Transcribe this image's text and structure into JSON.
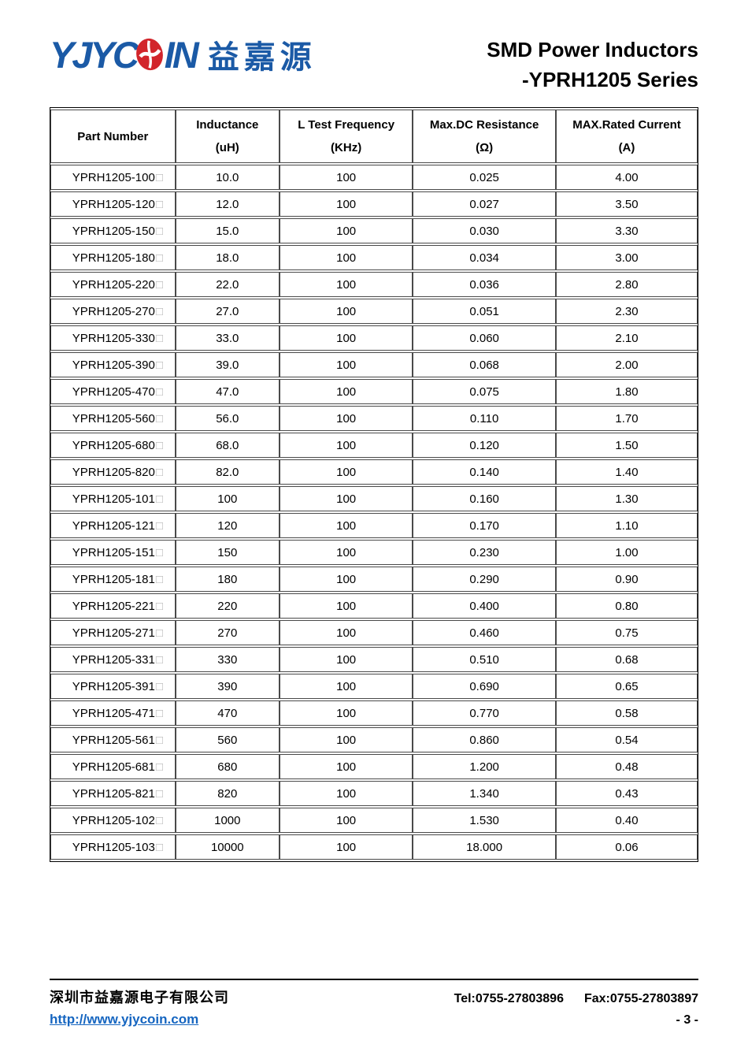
{
  "logo": {
    "latin_left": "YJYC",
    "latin_right": "IN",
    "coin_icon": "coin-o-icon",
    "chinese": "益嘉源",
    "blue": "#1b5aa6",
    "red": "#d2252b"
  },
  "header": {
    "title_line1": "SMD Power Inductors",
    "title_line2": "-YPRH1205 Series"
  },
  "table": {
    "suffix_symbol": "□",
    "columns": [
      {
        "label": "Part Number",
        "unit": ""
      },
      {
        "label": "Inductance",
        "unit": "(uH)"
      },
      {
        "label": "L Test Frequency",
        "unit": "(KHz)"
      },
      {
        "label": "Max.DC Resistance",
        "unit": "(Ω)"
      },
      {
        "label": "MAX.Rated Current",
        "unit": "(A)"
      }
    ],
    "rows": [
      [
        "YPRH1205-100",
        "10.0",
        "100",
        "0.025",
        "4.00"
      ],
      [
        "YPRH1205-120",
        "12.0",
        "100",
        "0.027",
        "3.50"
      ],
      [
        "YPRH1205-150",
        "15.0",
        "100",
        "0.030",
        "3.30"
      ],
      [
        "YPRH1205-180",
        "18.0",
        "100",
        "0.034",
        "3.00"
      ],
      [
        "YPRH1205-220",
        "22.0",
        "100",
        "0.036",
        "2.80"
      ],
      [
        "YPRH1205-270",
        "27.0",
        "100",
        "0.051",
        "2.30"
      ],
      [
        "YPRH1205-330",
        "33.0",
        "100",
        "0.060",
        "2.10"
      ],
      [
        "YPRH1205-390",
        "39.0",
        "100",
        "0.068",
        "2.00"
      ],
      [
        "YPRH1205-470",
        "47.0",
        "100",
        "0.075",
        "1.80"
      ],
      [
        "YPRH1205-560",
        "56.0",
        "100",
        "0.110",
        "1.70"
      ],
      [
        "YPRH1205-680",
        "68.0",
        "100",
        "0.120",
        "1.50"
      ],
      [
        "YPRH1205-820",
        "82.0",
        "100",
        "0.140",
        "1.40"
      ],
      [
        "YPRH1205-101",
        "100",
        "100",
        "0.160",
        "1.30"
      ],
      [
        "YPRH1205-121",
        "120",
        "100",
        "0.170",
        "1.10"
      ],
      [
        "YPRH1205-151",
        "150",
        "100",
        "0.230",
        "1.00"
      ],
      [
        "YPRH1205-181",
        "180",
        "100",
        "0.290",
        "0.90"
      ],
      [
        "YPRH1205-221",
        "220",
        "100",
        "0.400",
        "0.80"
      ],
      [
        "YPRH1205-271",
        "270",
        "100",
        "0.460",
        "0.75"
      ],
      [
        "YPRH1205-331",
        "330",
        "100",
        "0.510",
        "0.68"
      ],
      [
        "YPRH1205-391",
        "390",
        "100",
        "0.690",
        "0.65"
      ],
      [
        "YPRH1205-471",
        "470",
        "100",
        "0.770",
        "0.58"
      ],
      [
        "YPRH1205-561",
        "560",
        "100",
        "0.860",
        "0.54"
      ],
      [
        "YPRH1205-681",
        "680",
        "100",
        "1.200",
        "0.48"
      ],
      [
        "YPRH1205-821",
        "820",
        "100",
        "1.340",
        "0.43"
      ],
      [
        "YPRH1205-102",
        "1000",
        "100",
        "1.530",
        "0.40"
      ],
      [
        "YPRH1205-103",
        "10000",
        "100",
        "18.000",
        "0.06"
      ]
    ]
  },
  "footer": {
    "company": "深圳市益嘉源电子有限公司",
    "tel": "Tel:0755-27803896",
    "fax": "Fax:0755-27803897",
    "url": "http://www.yjycoin.com",
    "url_color": "#1565c0",
    "page_number": "- 3 -"
  }
}
